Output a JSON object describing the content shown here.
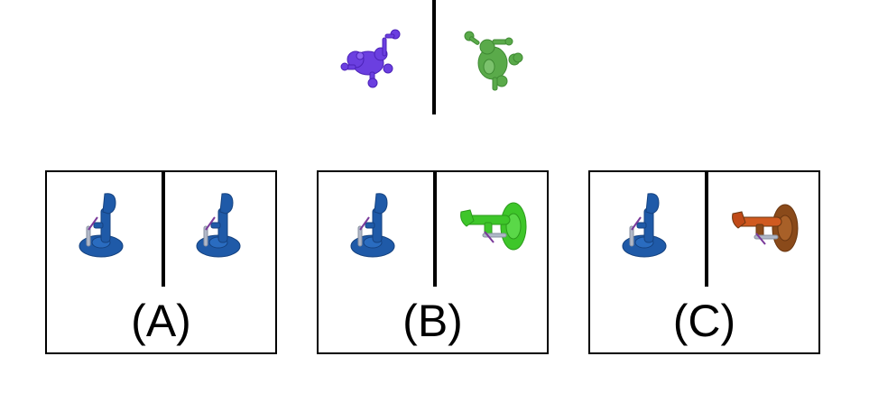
{
  "prompt": {
    "left_shape": {
      "name": "robot-dog-shape",
      "color": "#6b3fe0"
    },
    "right_shape": {
      "name": "robot-dog-shape",
      "color": "#5aaa4a"
    }
  },
  "options": [
    {
      "label": "(A)",
      "left_color": "#1f5aa8",
      "right_color": "#1f5aa8",
      "right_shape": "seated-figure"
    },
    {
      "label": "(B)",
      "left_color": "#1f5aa8",
      "right_color": "#3ec62a",
      "right_shape": "rotated-figure"
    },
    {
      "label": "(C)",
      "left_color": "#1f5aa8",
      "right_color": "#8a4a1a",
      "right_shape": "rotated-figure"
    }
  ]
}
